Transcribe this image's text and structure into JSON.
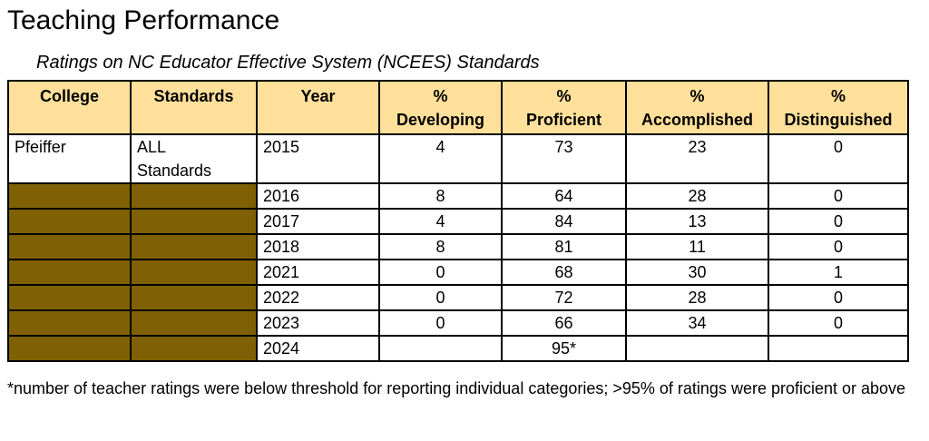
{
  "title": "Teaching Performance",
  "subtitle": "Ratings on NC Educator Effective System (NCEES) Standards",
  "table": {
    "headers": {
      "college": "College",
      "standards": "Standards",
      "year": "Year",
      "developing_line1": "%",
      "developing_line2": "Developing",
      "proficient_line1": "%",
      "proficient_line2": "Proficient",
      "accomplished_line1": "%",
      "accomplished_line2": "Accomplished",
      "distinguished_line1": "%",
      "distinguished_line2": "Distinguished"
    },
    "rows": [
      {
        "college": "Pfeiffer",
        "standards_line1": "ALL",
        "standards_line2": "Standards",
        "year": "2015",
        "developing": "4",
        "proficient": "73",
        "accomplished": "23",
        "distinguished": "0"
      },
      {
        "college": "",
        "standards": "",
        "year": "2016",
        "developing": "8",
        "proficient": "64",
        "accomplished": "28",
        "distinguished": "0"
      },
      {
        "college": "",
        "standards": "",
        "year": "2017",
        "developing": "4",
        "proficient": "84",
        "accomplished": "13",
        "distinguished": "0"
      },
      {
        "college": "",
        "standards": "",
        "year": "2018",
        "developing": "8",
        "proficient": "81",
        "accomplished": "11",
        "distinguished": "0"
      },
      {
        "college": "",
        "standards": "",
        "year": "2021",
        "developing": "0",
        "proficient": "68",
        "accomplished": "30",
        "distinguished": "1"
      },
      {
        "college": "",
        "standards": "",
        "year": "2022",
        "developing": "0",
        "proficient": "72",
        "accomplished": "28",
        "distinguished": "0"
      },
      {
        "college": "",
        "standards": "",
        "year": "2023",
        "developing": "0",
        "proficient": "66",
        "accomplished": "34",
        "distinguished": "0"
      },
      {
        "college": "",
        "standards": "",
        "year": "2024",
        "developing": "",
        "proficient": "95*",
        "accomplished": "",
        "distinguished": ""
      }
    ]
  },
  "footnote": "*number of teacher ratings were below threshold for reporting individual categories; >95% of ratings were proficient or above",
  "colors": {
    "header_fill": "#ffe09a",
    "filled_cell": "#7f6005",
    "border": "#000000"
  }
}
